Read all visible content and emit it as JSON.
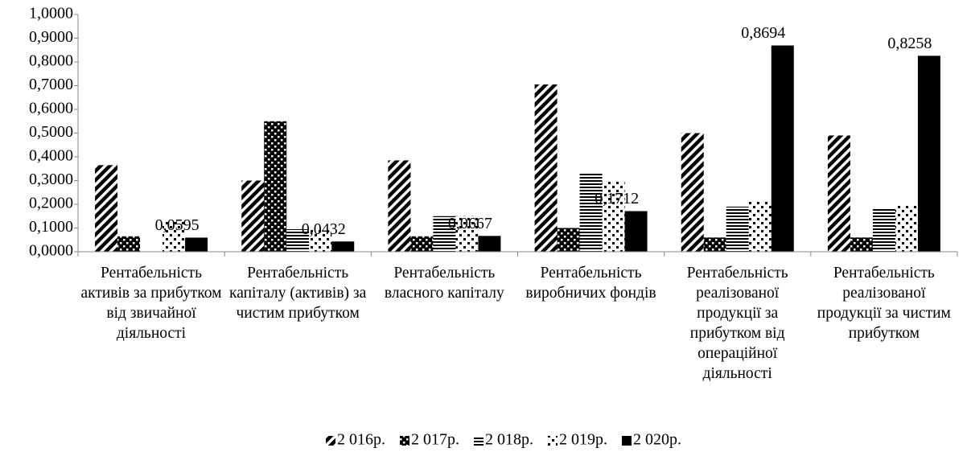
{
  "chart_data": {
    "type": "bar",
    "categories": [
      "Рентабельність активів за прибутком від звичайної діяльності",
      "Рентабельність капіталу (активів) за чистим прибутком",
      "Рентабельність власного капіталу",
      "Рентабельність виробничих фондів",
      "Рентабельність реалізованої продукції за прибутком від операційної діяльності",
      "Рентабельність реалізованої продукції за чистим прибутком"
    ],
    "series": [
      {
        "name": "2 016р.",
        "color": "#000000",
        "pattern": "diagonal",
        "values": [
          0.365,
          0.3,
          0.385,
          0.705,
          0.5,
          0.49
        ]
      },
      {
        "name": "2 017р.",
        "color": "#000000",
        "pattern": "checker",
        "values": [
          0.065,
          0.55,
          0.065,
          0.1,
          0.06,
          0.06
        ]
      },
      {
        "name": "2 018р.",
        "color": "#000000",
        "pattern": "horizontal",
        "values": [
          0,
          0.095,
          0.15,
          0.335,
          0.19,
          0.185
        ]
      },
      {
        "name": "2 019р.",
        "color": "#000000",
        "pattern": "dots",
        "values": [
          0.13,
          0.095,
          0.15,
          0.3,
          0.215,
          0.2
        ]
      },
      {
        "name": "2 020р.",
        "color": "#000000",
        "pattern": "solid",
        "values": [
          0.0595,
          0.0432,
          0.0667,
          0.1712,
          0.8694,
          0.8258
        ],
        "value_labels": [
          "0,0595",
          "0,0432",
          "0,0667",
          "0,1712",
          "0,8694",
          "0,8258"
        ]
      }
    ],
    "ylim": [
      0,
      1
    ],
    "yticks": [
      {
        "value": 0,
        "label": "0,0000"
      },
      {
        "value": 0.1,
        "label": "0,1000"
      },
      {
        "value": 0.2,
        "label": "0,2000"
      },
      {
        "value": 0.3,
        "label": "0,3000"
      },
      {
        "value": 0.4,
        "label": "0,4000"
      },
      {
        "value": 0.5,
        "label": "0,5000"
      },
      {
        "value": 0.6,
        "label": "0,6000"
      },
      {
        "value": 0.7,
        "label": "0,7000"
      },
      {
        "value": 0.8,
        "label": "0,8000"
      },
      {
        "value": 0.9,
        "label": "0,9000"
      },
      {
        "value": 1,
        "label": "1,0000"
      }
    ],
    "legend": "bottom"
  }
}
